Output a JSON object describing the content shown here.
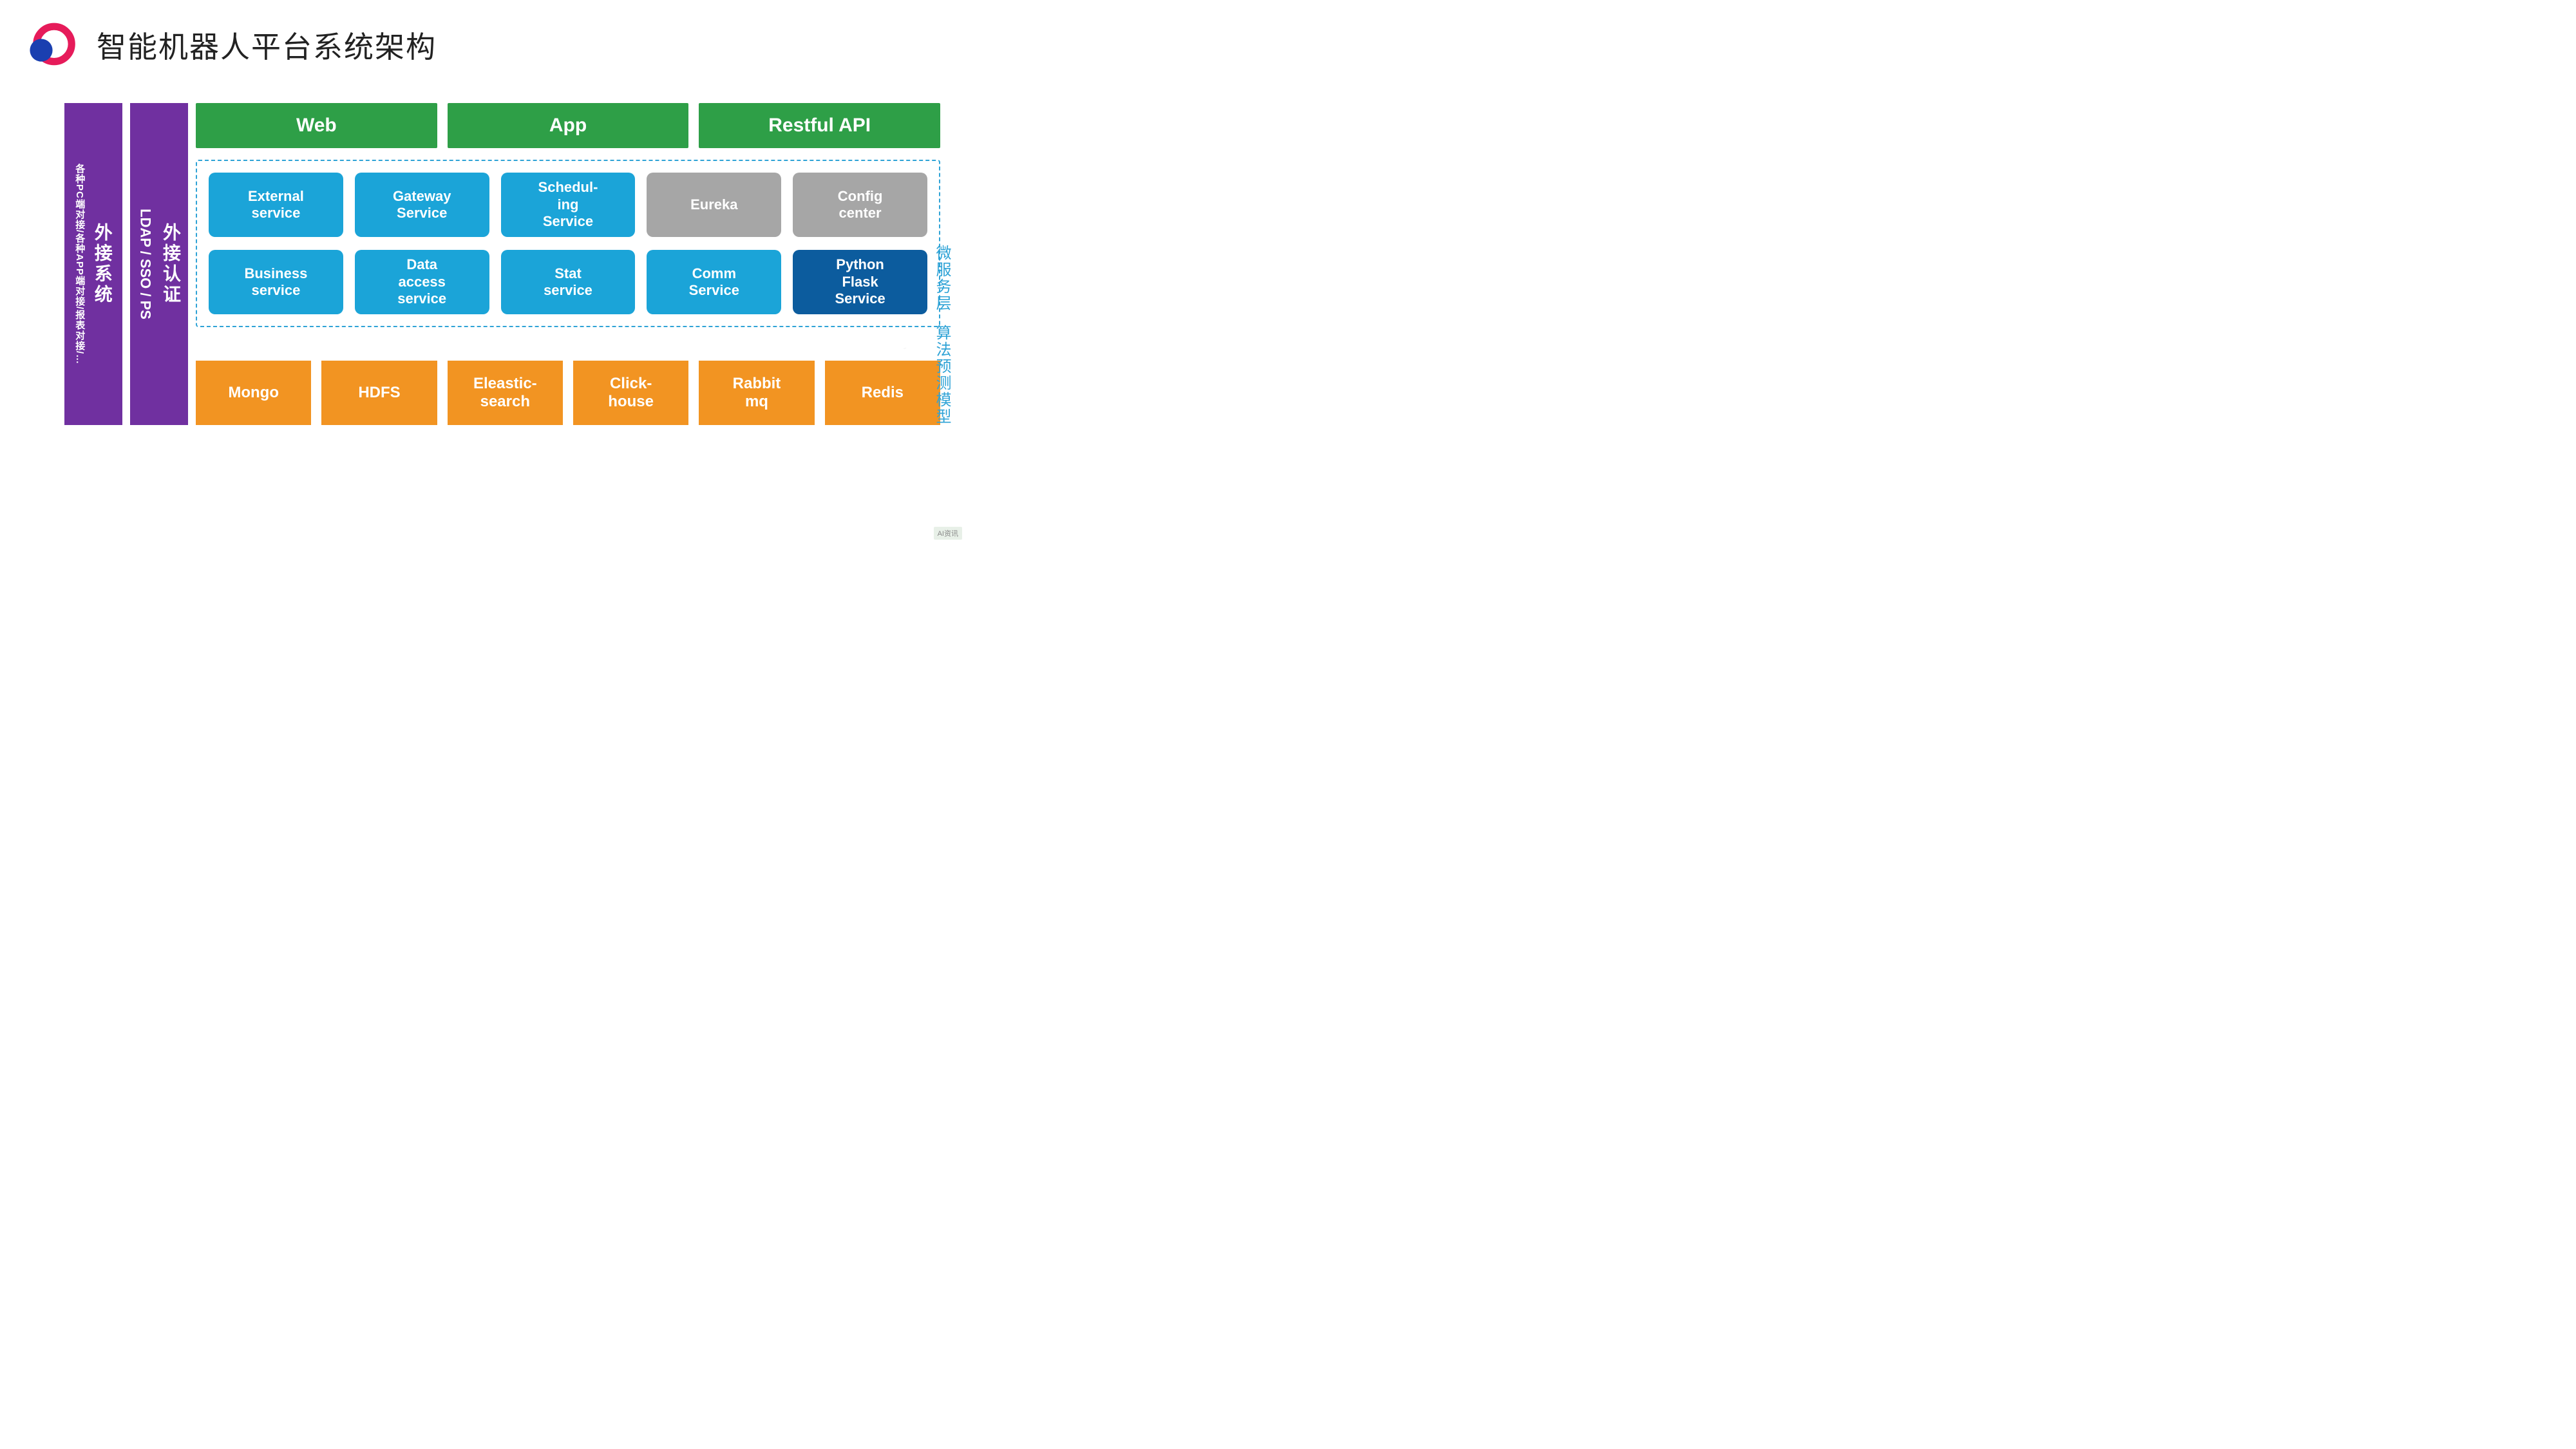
{
  "title": "智能机器人平台系统架构",
  "colors": {
    "purple": "#7030a0",
    "green": "#2e9f47",
    "blue_service": "#1ba4d8",
    "gray_service": "#a6a6a6",
    "darkblue_service": "#0c5c9e",
    "orange": "#f29422",
    "dashed_border": "#2fa3d6",
    "label_color": "#2fa3d6",
    "background": "#ffffff",
    "title_color": "#222222"
  },
  "left_columns": [
    {
      "main": "外接系统",
      "sub": "各种PC端对接/各种APP端对接/报表对接/…"
    },
    {
      "main": "外接认证",
      "sub": "LDAP / SSO / PS"
    }
  ],
  "top_row": [
    {
      "label": "Web"
    },
    {
      "label": "App"
    },
    {
      "label": "Restful API"
    }
  ],
  "service_rows": [
    [
      {
        "label": "External\nservice",
        "color": "#1ba4d8"
      },
      {
        "label": "Gateway\nService",
        "color": "#1ba4d8"
      },
      {
        "label": "Schedul-\ning\nService",
        "color": "#1ba4d8"
      },
      {
        "label": "Eureka",
        "color": "#a6a6a6"
      },
      {
        "label": "Config\ncenter",
        "color": "#a6a6a6"
      }
    ],
    [
      {
        "label": "Business\nservice",
        "color": "#1ba4d8"
      },
      {
        "label": "Data\naccess\nservice",
        "color": "#1ba4d8"
      },
      {
        "label": "Stat\nservice",
        "color": "#1ba4d8"
      },
      {
        "label": "Comm\nService",
        "color": "#1ba4d8"
      },
      {
        "label": "Python\nFlask\nService",
        "color": "#0c5c9e"
      }
    ]
  ],
  "bottom_row": [
    {
      "label": "Mongo"
    },
    {
      "label": "HDFS"
    },
    {
      "label": "Eleastic-\nsearch"
    },
    {
      "label": "Click-\nhouse"
    },
    {
      "label": "Rabbit\nmq"
    },
    {
      "label": "Redis"
    }
  ],
  "right_labels": {
    "top": "微服务层",
    "bottom": "算法预测模型"
  },
  "watermark": "AI资讯"
}
